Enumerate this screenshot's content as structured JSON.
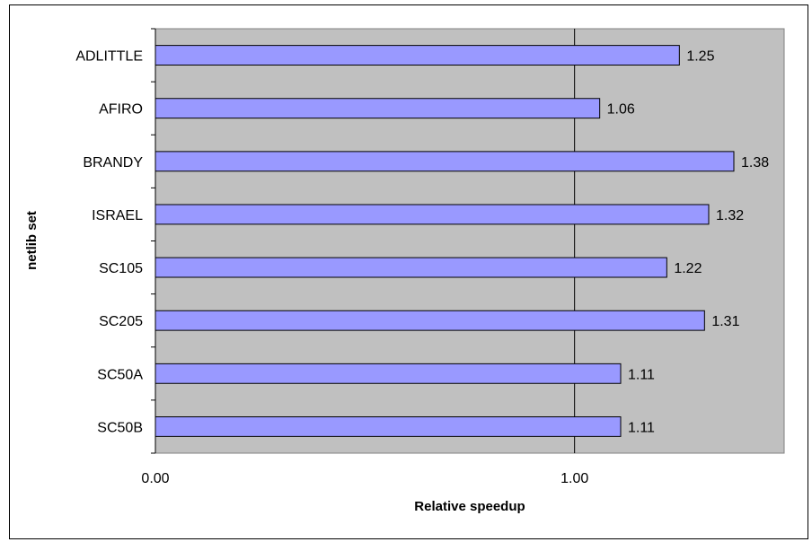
{
  "chart_data": {
    "type": "bar",
    "orientation": "horizontal",
    "categories": [
      "ADLITTLE",
      "AFIRO",
      "BRANDY",
      "ISRAEL",
      "SC105",
      "SC205",
      "SC50A",
      "SC50B"
    ],
    "values": [
      1.25,
      1.06,
      1.38,
      1.32,
      1.22,
      1.31,
      1.11,
      1.11
    ],
    "data_labels": [
      "1.25",
      "1.06",
      "1.38",
      "1.32",
      "1.22",
      "1.31",
      "1.11",
      "1.11"
    ],
    "xlabel": "Relative speedup",
    "ylabel": "netlib set",
    "xlim": [
      0,
      1.5
    ],
    "xticks": [
      0,
      1
    ],
    "xtick_labels": [
      "0.00",
      "1.00"
    ],
    "grid": "vertical major gridlines",
    "legend": "none",
    "colors": {
      "bar_fill": "#9999ff",
      "bar_stroke": "#000000",
      "plot_background": "#c0c0c0",
      "gridline": "#000000"
    }
  }
}
